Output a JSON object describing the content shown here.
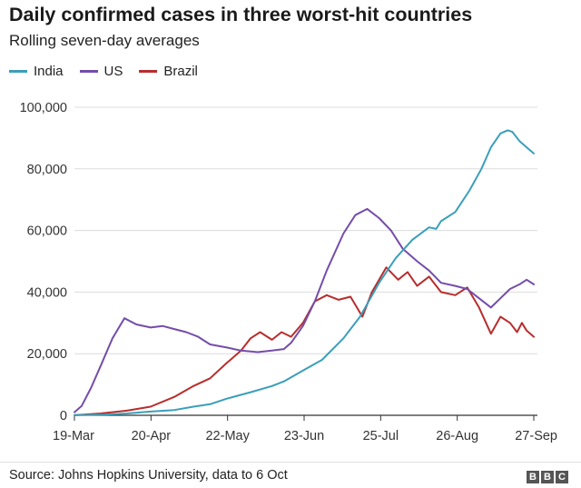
{
  "chart_data": {
    "type": "line",
    "title": "Daily confirmed cases in three worst-hit countries",
    "subtitle": "Rolling seven-day averages",
    "x_tick_labels": [
      "19-Mar",
      "20-Apr",
      "22-May",
      "23-Jun",
      "25-Jul",
      "26-Aug",
      "27-Sep"
    ],
    "x_start": "2020-03-19",
    "x_end": "2020-09-28",
    "y_tick_labels": [
      "0",
      "20,000",
      "40,000",
      "60,000",
      "80,000",
      "100,000"
    ],
    "y_ticks": [
      0,
      20000,
      40000,
      60000,
      80000,
      100000
    ],
    "ylim": [
      0,
      100000
    ],
    "legend_position": "top-left",
    "series": [
      {
        "name": "India",
        "color": "#3a9fba",
        "points": [
          [
            "2020-03-19",
            50
          ],
          [
            "2020-04-01",
            200
          ],
          [
            "2020-04-10",
            600
          ],
          [
            "2020-04-20",
            1200
          ],
          [
            "2020-04-30",
            1700
          ],
          [
            "2020-05-08",
            2800
          ],
          [
            "2020-05-15",
            3600
          ],
          [
            "2020-05-22",
            5400
          ],
          [
            "2020-06-01",
            7500
          ],
          [
            "2020-06-10",
            9500
          ],
          [
            "2020-06-15",
            11000
          ],
          [
            "2020-06-23",
            14500
          ],
          [
            "2020-07-01",
            18000
          ],
          [
            "2020-07-10",
            25000
          ],
          [
            "2020-07-17",
            32000
          ],
          [
            "2020-07-25",
            43000
          ],
          [
            "2020-08-01",
            51000
          ],
          [
            "2020-08-08",
            57000
          ],
          [
            "2020-08-15",
            61000
          ],
          [
            "2020-08-18",
            60500
          ],
          [
            "2020-08-20",
            63000
          ],
          [
            "2020-08-26",
            66000
          ],
          [
            "2020-09-01",
            73000
          ],
          [
            "2020-09-06",
            80000
          ],
          [
            "2020-09-10",
            87000
          ],
          [
            "2020-09-14",
            91500
          ],
          [
            "2020-09-17",
            92500
          ],
          [
            "2020-09-19",
            92000
          ],
          [
            "2020-09-22",
            89000
          ],
          [
            "2020-09-25",
            87000
          ],
          [
            "2020-09-28",
            85000
          ]
        ]
      },
      {
        "name": "US",
        "color": "#744da9",
        "points": [
          [
            "2020-03-19",
            1000
          ],
          [
            "2020-03-22",
            3000
          ],
          [
            "2020-03-26",
            9000
          ],
          [
            "2020-03-30",
            16000
          ],
          [
            "2020-04-04",
            25000
          ],
          [
            "2020-04-09",
            31500
          ],
          [
            "2020-04-14",
            29500
          ],
          [
            "2020-04-20",
            28500
          ],
          [
            "2020-04-25",
            29000
          ],
          [
            "2020-04-30",
            28000
          ],
          [
            "2020-05-05",
            27000
          ],
          [
            "2020-05-10",
            25500
          ],
          [
            "2020-05-15",
            23000
          ],
          [
            "2020-05-22",
            22000
          ],
          [
            "2020-05-28",
            21000
          ],
          [
            "2020-06-04",
            20500
          ],
          [
            "2020-06-10",
            21000
          ],
          [
            "2020-06-15",
            21500
          ],
          [
            "2020-06-18",
            23500
          ],
          [
            "2020-06-23",
            29000
          ],
          [
            "2020-06-28",
            37000
          ],
          [
            "2020-07-03",
            47000
          ],
          [
            "2020-07-10",
            59000
          ],
          [
            "2020-07-15",
            65000
          ],
          [
            "2020-07-20",
            67000
          ],
          [
            "2020-07-25",
            64000
          ],
          [
            "2020-07-30",
            60000
          ],
          [
            "2020-08-04",
            54000
          ],
          [
            "2020-08-10",
            50000
          ],
          [
            "2020-08-15",
            47000
          ],
          [
            "2020-08-20",
            43000
          ],
          [
            "2020-08-26",
            42000
          ],
          [
            "2020-08-31",
            41000
          ],
          [
            "2020-09-05",
            38000
          ],
          [
            "2020-09-10",
            35000
          ],
          [
            "2020-09-14",
            38000
          ],
          [
            "2020-09-18",
            41000
          ],
          [
            "2020-09-22",
            42500
          ],
          [
            "2020-09-25",
            44000
          ],
          [
            "2020-09-28",
            42500
          ]
        ]
      },
      {
        "name": "Brazil",
        "color": "#b82d2d",
        "points": [
          [
            "2020-03-19",
            40
          ],
          [
            "2020-03-30",
            600
          ],
          [
            "2020-04-10",
            1500
          ],
          [
            "2020-04-20",
            2800
          ],
          [
            "2020-04-30",
            6000
          ],
          [
            "2020-05-08",
            9500
          ],
          [
            "2020-05-15",
            12000
          ],
          [
            "2020-05-22",
            17000
          ],
          [
            "2020-05-28",
            21000
          ],
          [
            "2020-06-01",
            25000
          ],
          [
            "2020-06-05",
            27000
          ],
          [
            "2020-06-10",
            24500
          ],
          [
            "2020-06-14",
            27000
          ],
          [
            "2020-06-18",
            25500
          ],
          [
            "2020-06-23",
            30000
          ],
          [
            "2020-06-28",
            37000
          ],
          [
            "2020-07-03",
            39000
          ],
          [
            "2020-07-08",
            37500
          ],
          [
            "2020-07-13",
            38500
          ],
          [
            "2020-07-18",
            32000
          ],
          [
            "2020-07-22",
            40000
          ],
          [
            "2020-07-28",
            48000
          ],
          [
            "2020-08-02",
            44000
          ],
          [
            "2020-08-06",
            46500
          ],
          [
            "2020-08-10",
            42000
          ],
          [
            "2020-08-15",
            45000
          ],
          [
            "2020-08-20",
            40000
          ],
          [
            "2020-08-26",
            39000
          ],
          [
            "2020-08-31",
            41500
          ],
          [
            "2020-09-05",
            35000
          ],
          [
            "2020-09-10",
            26500
          ],
          [
            "2020-09-14",
            32000
          ],
          [
            "2020-09-18",
            30000
          ],
          [
            "2020-09-21",
            27000
          ],
          [
            "2020-09-23",
            30000
          ],
          [
            "2020-09-25",
            27500
          ],
          [
            "2020-09-28",
            25500
          ]
        ]
      }
    ]
  },
  "source": "Source: Johns Hopkins University, data to 6 Oct",
  "logo": {
    "text": [
      "B",
      "B",
      "C"
    ]
  }
}
